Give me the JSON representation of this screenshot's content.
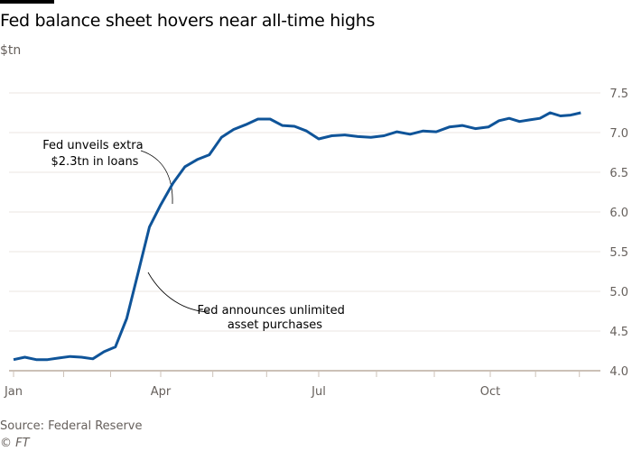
{
  "chart_data": {
    "type": "line",
    "title": "Fed balance sheet hovers near all-time highs",
    "ylabel": "$tn",
    "xlabel": "",
    "ylim": [
      4.0,
      7.5
    ],
    "yticks": [
      "4.0",
      "4.5",
      "5.0",
      "5.5",
      "6.0",
      "6.5",
      "7.0",
      "7.5"
    ],
    "xticks": [
      {
        "label": "Jan",
        "date": "2020-01-01"
      },
      {
        "label": "Apr",
        "date": "2020-04-01"
      },
      {
        "label": "Jul",
        "date": "2020-07-01"
      },
      {
        "label": "Oct",
        "date": "2020-10-01"
      }
    ],
    "grid": true,
    "line_color": "#0f5499",
    "x_start": "2020-01-01",
    "x_interval": "weekly",
    "values": [
      4.14,
      4.17,
      4.14,
      4.14,
      4.16,
      4.18,
      4.17,
      4.15,
      4.24,
      4.3,
      4.66,
      5.23,
      5.81,
      6.09,
      6.36,
      6.57,
      6.66,
      6.72,
      6.94,
      7.04,
      7.1,
      7.17,
      7.17,
      7.09,
      7.08,
      7.02,
      6.92,
      6.96,
      6.97,
      6.95,
      6.94,
      6.96,
      7.01,
      6.98,
      7.02,
      7.01,
      7.07,
      7.09,
      7.05,
      7.07,
      7.15,
      7.18,
      7.14,
      7.16,
      7.18,
      7.25,
      7.21,
      7.22,
      7.25
    ],
    "annotations": [
      {
        "lines": [
          "Fed unveils extra",
          "$2.3tn in loans"
        ]
      },
      {
        "lines": [
          "Fed announces unlimited",
          "asset purchases"
        ]
      }
    ]
  },
  "source": "Source: Federal Reserve",
  "credit": "© FT"
}
